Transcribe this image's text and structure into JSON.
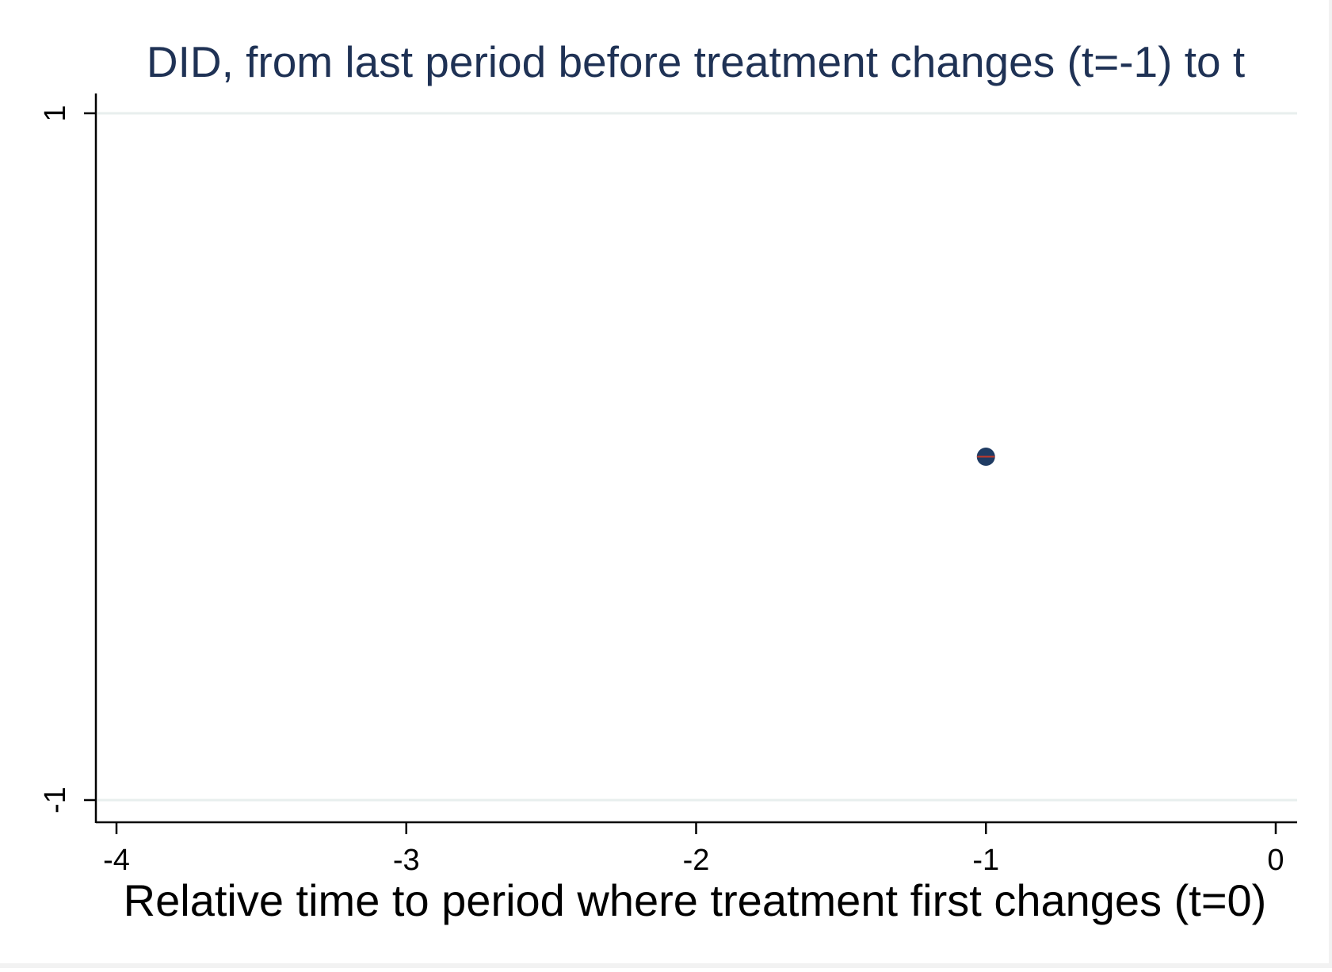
{
  "chart_data": {
    "type": "scatter",
    "title": "DID, from last period before treatment changes (t=-1) to t",
    "xlabel": "Relative time to period where treatment first changes (t=0)",
    "ylabel": "",
    "xlim": [
      -4.07,
      0.08
    ],
    "ylim": [
      -1.06,
      1.0
    ],
    "x_ticks": [
      {
        "value": -4,
        "label": "-4"
      },
      {
        "value": -3,
        "label": "-3"
      },
      {
        "value": -2,
        "label": "-2"
      },
      {
        "value": -1,
        "label": "-1"
      },
      {
        "value": 0,
        "label": "0"
      }
    ],
    "y_ticks": [
      {
        "value": 1,
        "label": "1"
      },
      {
        "value": -1,
        "label": "-1"
      }
    ],
    "grid": "horizontal at y ticks",
    "series": [
      {
        "points": [
          {
            "x": -1,
            "y": 0,
            "ci_low": 0,
            "ci_high": 0
          }
        ]
      }
    ],
    "colors": {
      "title": "#1f3255",
      "marker": "#1f3b63",
      "ci": "#c0392b",
      "grid": "#e8efee",
      "axis": "#000000",
      "background": "#ffffff",
      "footer_band": "#f2f2f2"
    }
  }
}
